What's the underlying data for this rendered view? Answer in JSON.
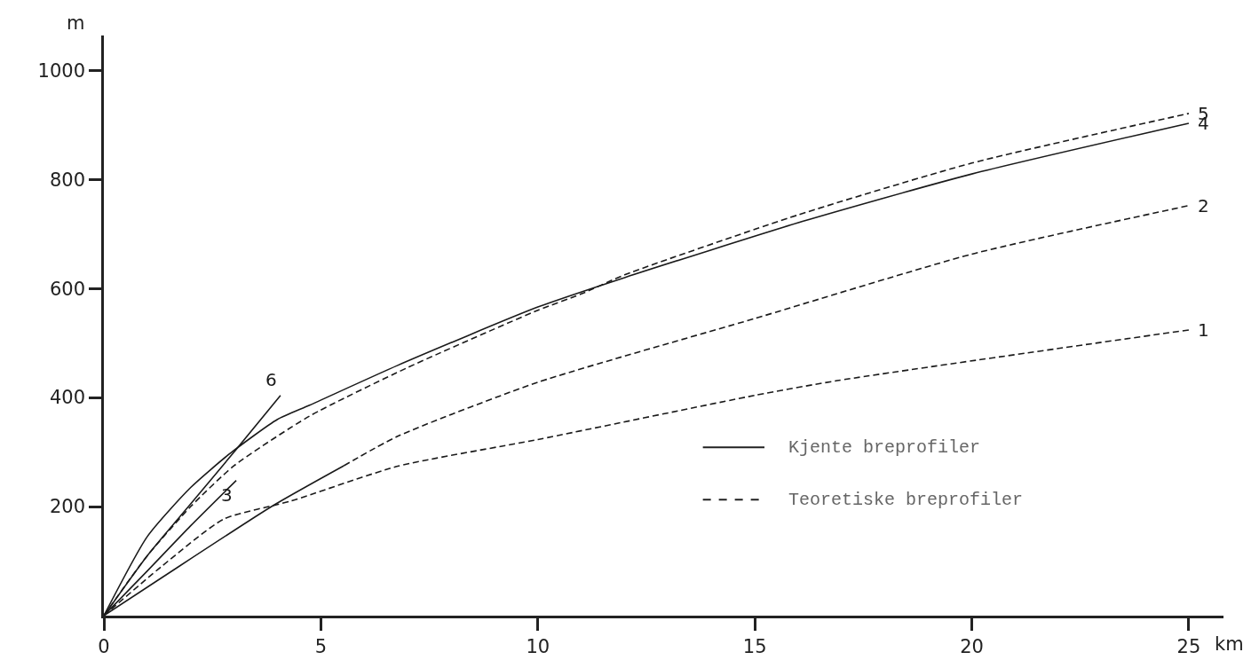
{
  "chart_data": {
    "type": "line",
    "xlabel": "km",
    "ylabel": "m",
    "xlim": [
      0,
      25.8
    ],
    "ylim": [
      0,
      1064
    ],
    "xticks": [
      0,
      5,
      10,
      15,
      20,
      25
    ],
    "yticks": [
      200,
      400,
      600,
      800,
      1000
    ],
    "legend": false,
    "marker": "none",
    "series": [
      {
        "name": "4",
        "color": "#1a1a1a",
        "line_style": "solid",
        "x": [
          0,
          1,
          2,
          2.9,
          4,
          4.74,
          6.77,
          10,
          12,
          16.1,
          20,
          25
        ],
        "values": [
          0,
          145,
          235,
          297,
          360,
          386,
          459,
          566,
          620,
          723,
          810,
          903
        ]
      },
      {
        "name": "5",
        "color": "#1a1a1a",
        "line_style": "dashed",
        "x": [
          0,
          1,
          2,
          3,
          4.74,
          7,
          10,
          11,
          12,
          16,
          20,
          25
        ],
        "values": [
          0,
          110,
          200,
          275,
          366,
          455,
          560,
          590,
          625,
          735,
          830,
          921
        ]
      },
      {
        "name": "6",
        "color": "#1a1a1a",
        "line_style": "solid",
        "x": [
          0,
          1,
          2,
          3,
          4.07
        ],
        "values": [
          0,
          110,
          205,
          300,
          404
        ]
      },
      {
        "name": "3",
        "color": "#1a1a1a",
        "line_style": "solid",
        "x": [
          0,
          1,
          2,
          3.05
        ],
        "values": [
          0,
          82,
          165,
          248
        ]
      },
      {
        "color": "#1a1a1a",
        "line_style": "solid",
        "x": [
          0,
          1.34,
          3.88,
          5.53
        ],
        "values": [
          0,
          70,
          201,
          275
        ]
      },
      {
        "name": "2",
        "color": "#1a1a1a",
        "line_style": "dashed",
        "x": [
          5.53,
          6.77,
          10,
          15,
          20,
          25
        ],
        "values": [
          275,
          329,
          428,
          545,
          663,
          752
        ]
      },
      {
        "name": "1",
        "color": "#1a1a1a",
        "line_style": "dashed",
        "x": [
          0,
          1.34,
          2.76,
          4.3,
          6.77,
          10,
          15,
          16.9,
          25
        ],
        "values": [
          0,
          91,
          177,
          210,
          274,
          323,
          404,
          431,
          524
        ]
      }
    ],
    "annotations": [
      "Kjente breprofiler",
      "Teoretiske breprofiler"
    ]
  }
}
